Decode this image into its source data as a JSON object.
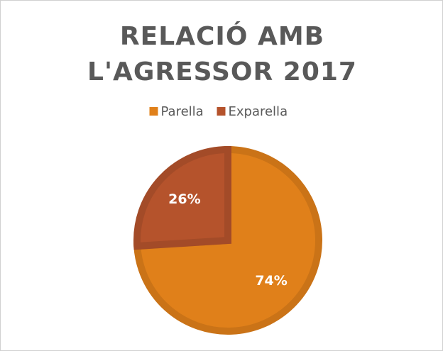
{
  "chart_data": {
    "type": "pie",
    "title": "RELACIÓ AMB L'AGRESSOR 2017",
    "categories": [
      "Parella",
      "Exparella"
    ],
    "values": [
      74,
      26
    ],
    "value_labels": [
      "74%",
      "26%"
    ],
    "colors": [
      "#e0801a",
      "#b5532c"
    ],
    "legend": "top"
  }
}
